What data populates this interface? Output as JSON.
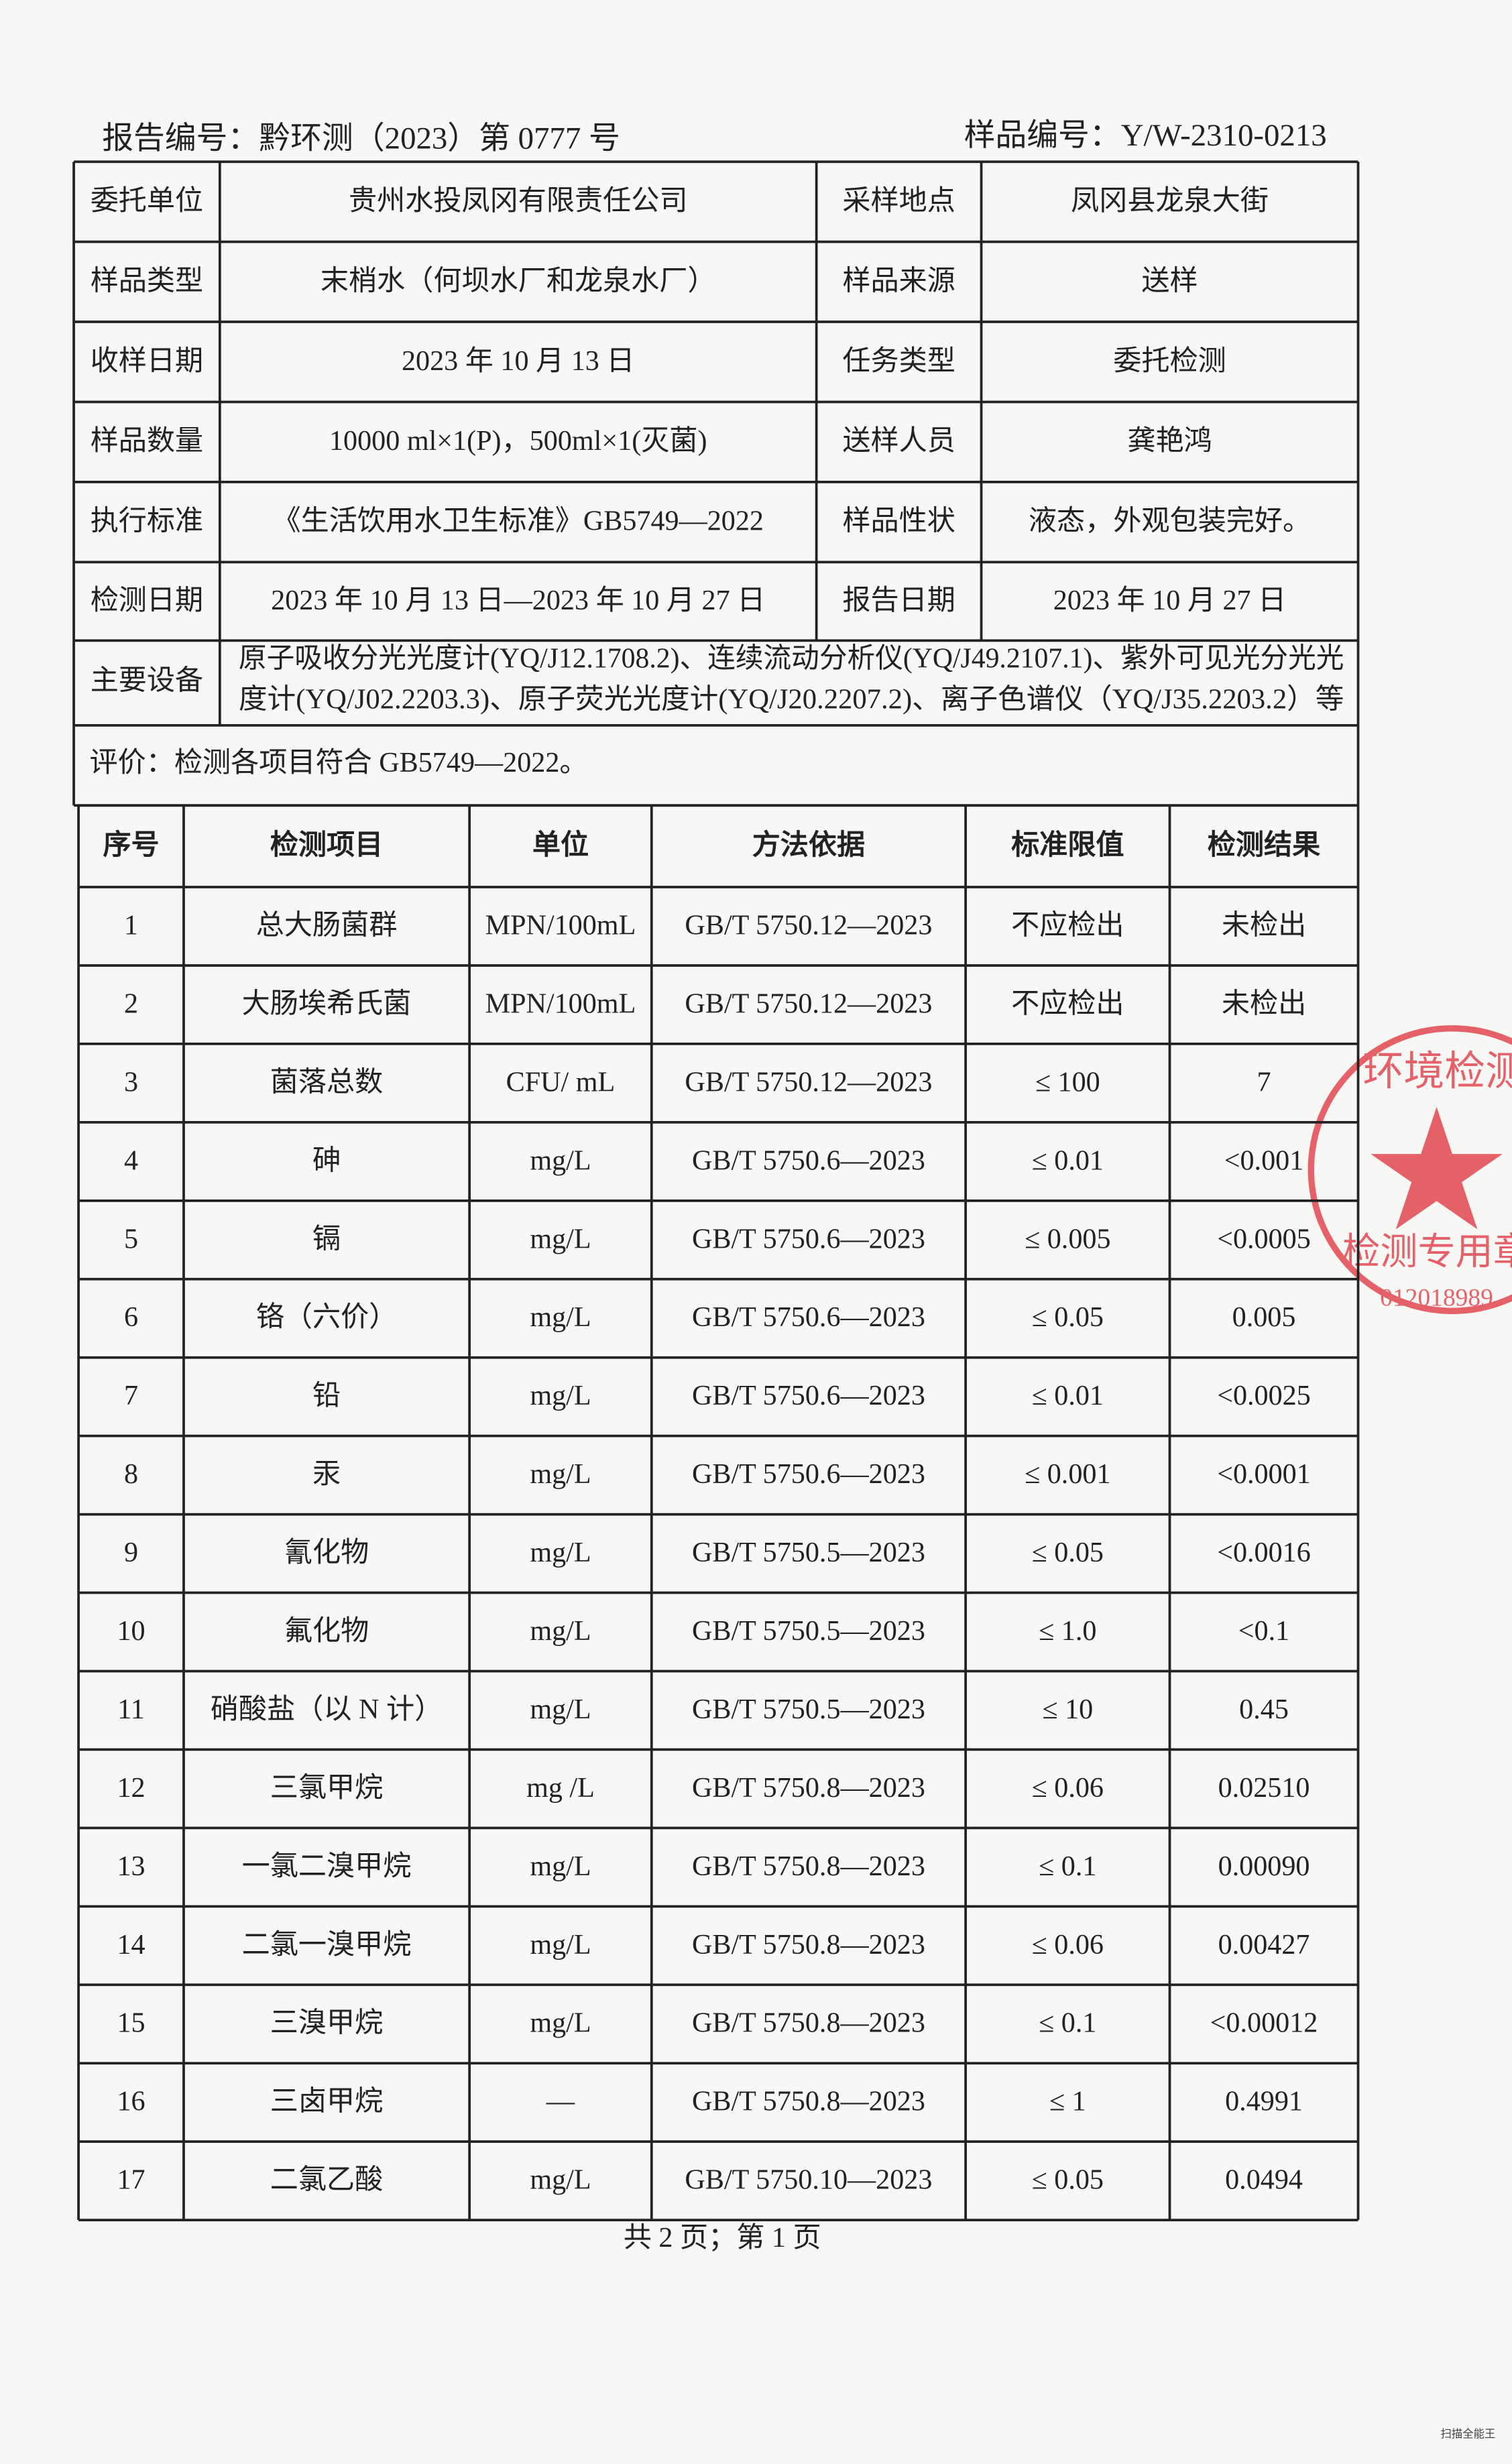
{
  "header": {
    "report_no": "报告编号：黔环测（2023）第 0777 号",
    "sample_no": "样品编号：Y/W-2310-0213"
  },
  "info": {
    "rows": [
      [
        "委托单位",
        "贵州水投凤冈有限责任公司",
        "采样地点",
        "凤冈县龙泉大街"
      ],
      [
        "样品类型",
        "末梢水（何坝水厂和龙泉水厂）",
        "样品来源",
        "送样"
      ],
      [
        "收样日期",
        "2023 年 10 月 13 日",
        "任务类型",
        "委托检测"
      ],
      [
        "样品数量",
        "10000 ml×1(P)，500ml×1(灭菌)",
        "送样人员",
        "龚艳鸿"
      ],
      [
        "执行标准",
        "《生活饮用水卫生标准》GB5749—2022",
        "样品性状",
        "液态，外观包装完好。"
      ],
      [
        "检测日期",
        "2023 年 10 月 13 日—2023 年 10 月 27 日",
        "报告日期",
        "2023 年 10 月 27 日"
      ]
    ],
    "equipment": {
      "label": "主要设备",
      "lines": [
        "原子吸收分光光度计(YQ/J12.1708.2)、连续流动分析仪(YQ/J49.2107.1)、紫外可见光分光光",
        "度计(YQ/J02.2203.3)、原子荧光光度计(YQ/J20.2207.2)、离子色谱仪（YQ/J35.2203.2）等"
      ]
    },
    "evaluation": "评价：检测各项目符合 GB5749—2022。"
  },
  "results": {
    "header": [
      "序号",
      "检测项目",
      "单位",
      "方法依据",
      "标准限值",
      "检测结果"
    ],
    "rows": [
      [
        "1",
        "总大肠菌群",
        "MPN/100mL",
        "GB/T 5750.12—2023",
        "不应检出",
        "未检出"
      ],
      [
        "2",
        "大肠埃希氏菌",
        "MPN/100mL",
        "GB/T 5750.12—2023",
        "不应检出",
        "未检出"
      ],
      [
        "3",
        "菌落总数",
        "CFU/ mL",
        "GB/T 5750.12—2023",
        "≤ 100",
        "7"
      ],
      [
        "4",
        "砷",
        "mg/L",
        "GB/T 5750.6—2023",
        "≤ 0.01",
        "<0.001"
      ],
      [
        "5",
        "镉",
        "mg/L",
        "GB/T 5750.6—2023",
        "≤ 0.005",
        "<0.0005"
      ],
      [
        "6",
        "铬（六价）",
        "mg/L",
        "GB/T 5750.6—2023",
        "≤ 0.05",
        "0.005"
      ],
      [
        "7",
        "铅",
        "mg/L",
        "GB/T 5750.6—2023",
        "≤ 0.01",
        "<0.0025"
      ],
      [
        "8",
        "汞",
        "mg/L",
        "GB/T 5750.6—2023",
        "≤ 0.001",
        "<0.0001"
      ],
      [
        "9",
        "氰化物",
        "mg/L",
        "GB/T 5750.5—2023",
        "≤ 0.05",
        "<0.0016"
      ],
      [
        "10",
        "氟化物",
        "mg/L",
        "GB/T 5750.5—2023",
        "≤ 1.0",
        "<0.1"
      ],
      [
        "11",
        "硝酸盐（以 N 计）",
        "mg/L",
        "GB/T 5750.5—2023",
        "≤ 10",
        "0.45"
      ],
      [
        "12",
        "三氯甲烷",
        "mg /L",
        "GB/T 5750.8—2023",
        "≤ 0.06",
        "0.02510"
      ],
      [
        "13",
        "一氯二溴甲烷",
        "mg/L",
        "GB/T 5750.8—2023",
        "≤ 0.1",
        "0.00090"
      ],
      [
        "14",
        "二氯一溴甲烷",
        "mg/L",
        "GB/T 5750.8—2023",
        "≤ 0.06",
        "0.00427"
      ],
      [
        "15",
        "三溴甲烷",
        "mg/L",
        "GB/T 5750.8—2023",
        "≤ 0.1",
        "<0.00012"
      ],
      [
        "16",
        "三卤甲烷",
        "—",
        "GB/T 5750.8—2023",
        "≤ 1",
        "0.4991"
      ],
      [
        "17",
        "二氯乙酸",
        "mg/L",
        "GB/T 5750.10—2023",
        "≤ 0.05",
        "0.0494"
      ]
    ]
  },
  "stamp": {
    "top": "环境检测",
    "bottom": "检测专用章",
    "code": "012018989"
  },
  "footer": "共 2 页；第 1 页",
  "watermark": "扫描全能王"
}
